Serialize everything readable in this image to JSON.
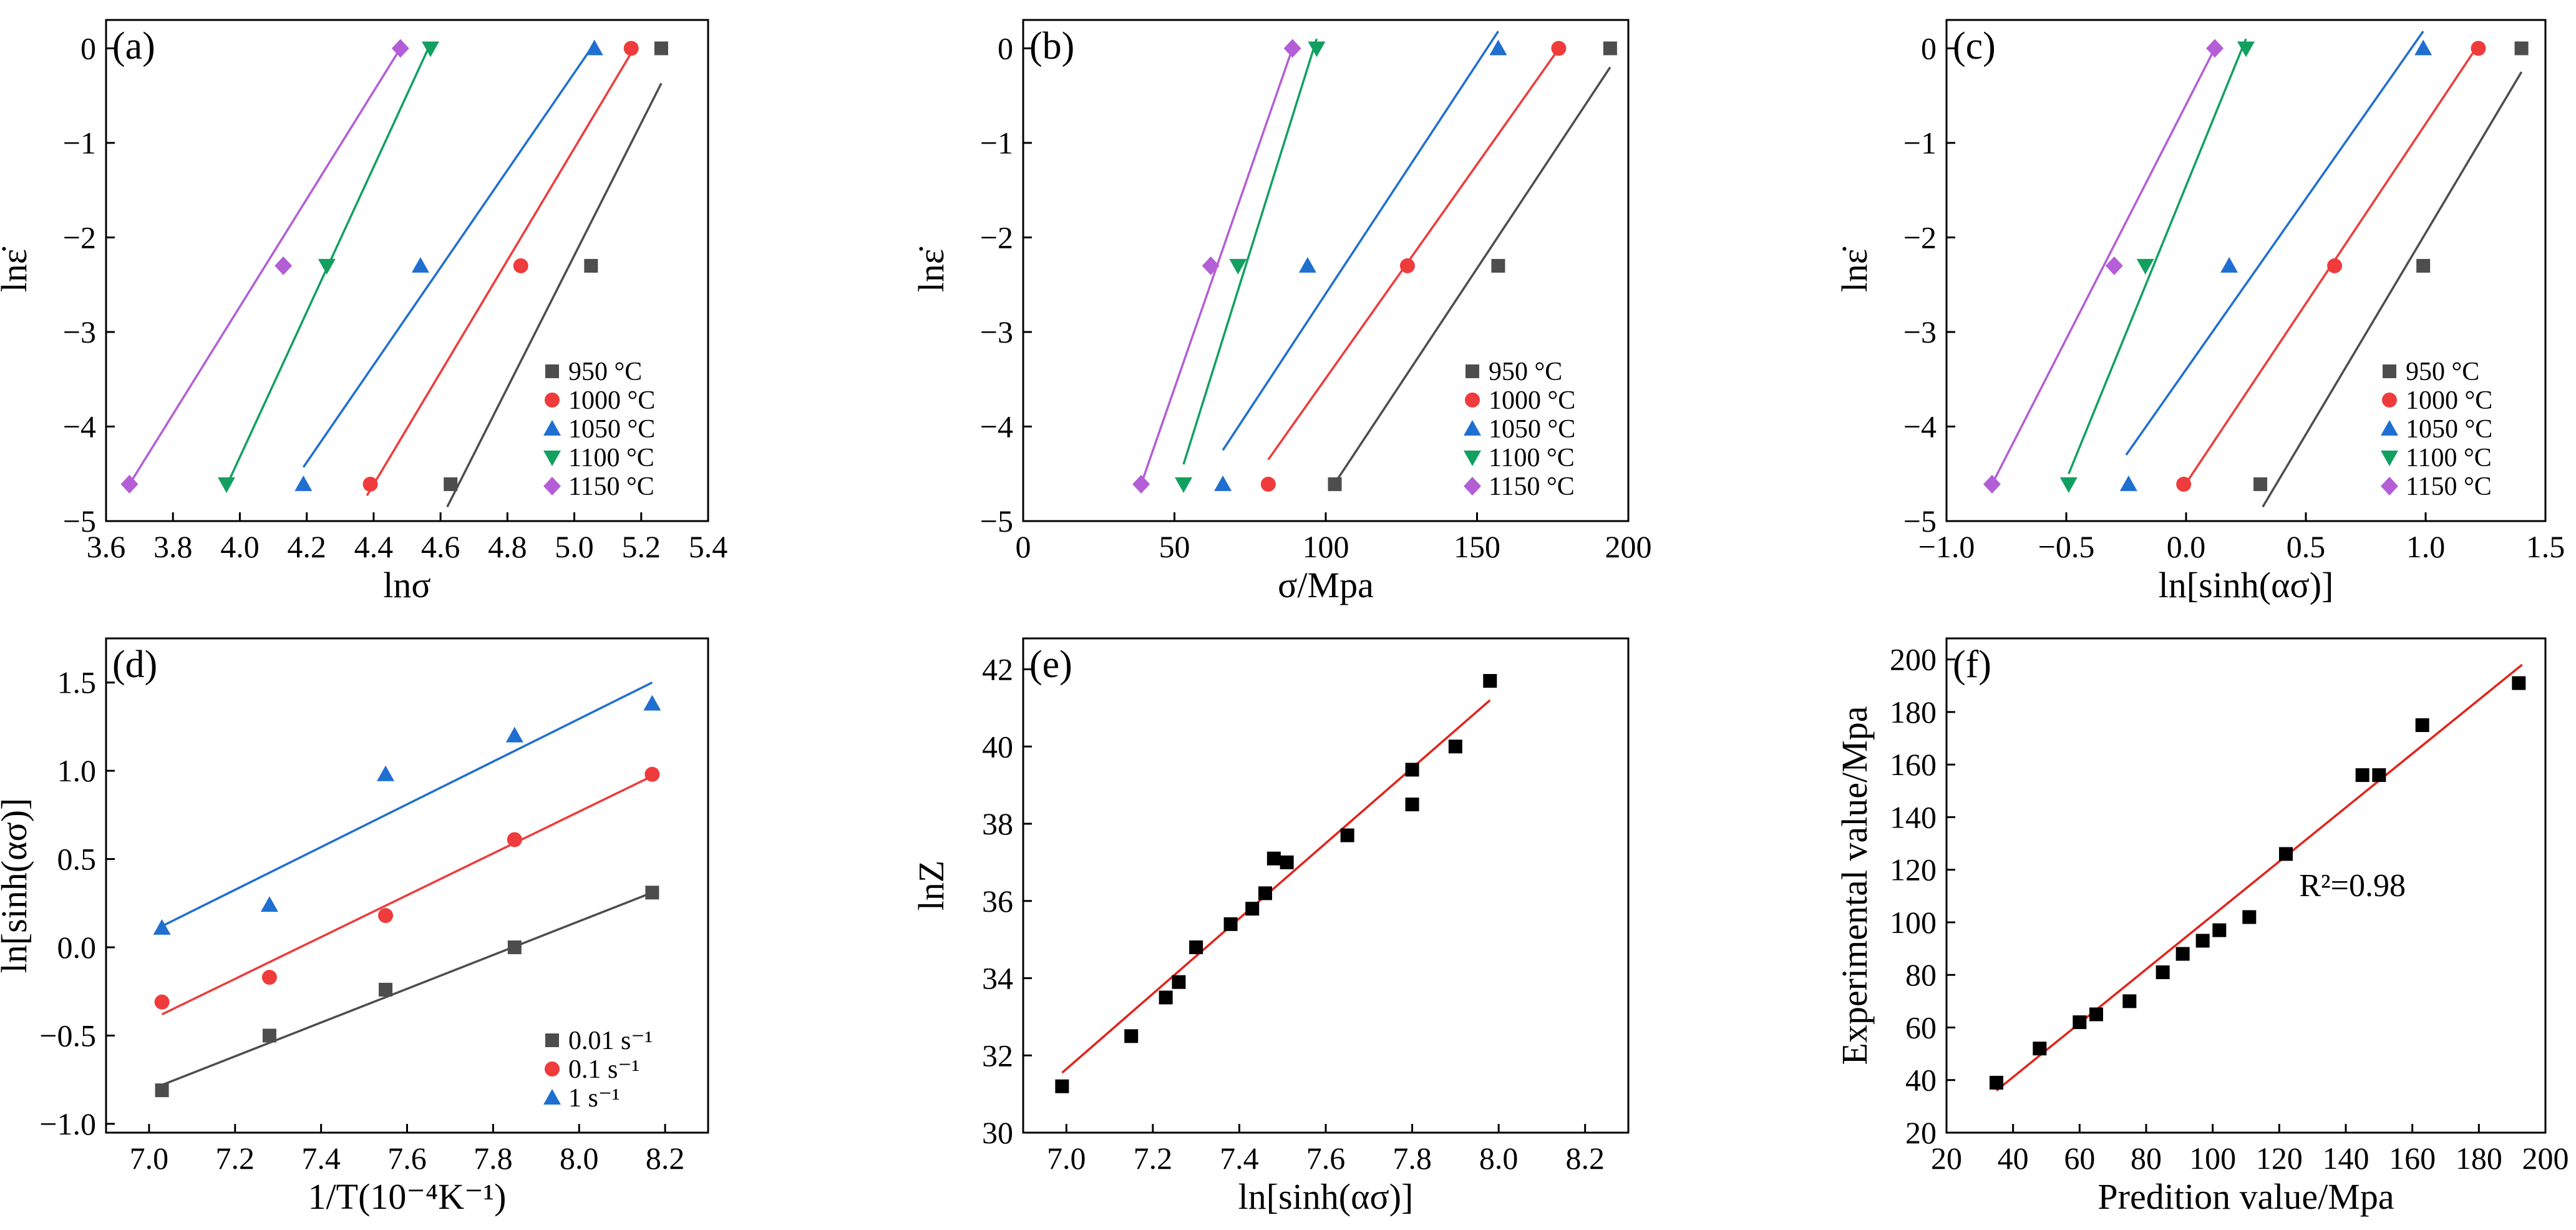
{
  "chart_data": [
    {
      "panel": "(a)",
      "type": "scatter",
      "xlabel": "lnσ",
      "ylabel": "lnε̇",
      "xlim": [
        3.6,
        5.4
      ],
      "ylim": [
        -5,
        0.3
      ],
      "xticks": [
        3.6,
        3.8,
        4.0,
        4.2,
        4.4,
        4.6,
        4.8,
        5.0,
        5.2,
        5.4
      ],
      "xtick_labels": [
        "3.6",
        "3.8",
        "4.0",
        "4.2",
        "4.4",
        "4.6",
        "4.8",
        "5.0",
        "5.2",
        "5.4"
      ],
      "yticks": [
        0,
        -1,
        -2,
        -3,
        -4,
        -5
      ],
      "ytick_labels": [
        "0",
        "−1",
        "−2",
        "−3",
        "−4",
        "−5"
      ],
      "legend_position": "bottom-right",
      "series": [
        {
          "name": "950 °C",
          "color": "#4d4d4d",
          "marker": "square",
          "x": [
            4.63,
            5.05,
            5.26
          ],
          "y": [
            -4.61,
            -2.3,
            0.0
          ],
          "line": [
            [
              4.62,
              -4.85
            ],
            [
              5.26,
              -0.37
            ]
          ]
        },
        {
          "name": "1000 °C",
          "color": "#ef3b3b",
          "marker": "circle",
          "x": [
            4.39,
            4.84,
            5.17
          ],
          "y": [
            -4.61,
            -2.3,
            0.0
          ],
          "line": [
            [
              4.38,
              -4.73
            ],
            [
              5.17,
              -0.05
            ]
          ]
        },
        {
          "name": "1050 °C",
          "color": "#1f6fd1",
          "marker": "triangle-up",
          "x": [
            4.19,
            4.54,
            5.06
          ],
          "y": [
            -4.61,
            -2.3,
            0.0
          ],
          "line": [
            [
              4.19,
              -4.43
            ],
            [
              5.06,
              0.05
            ]
          ]
        },
        {
          "name": "1100 °C",
          "color": "#12a060",
          "marker": "triangle-down",
          "x": [
            3.96,
            4.26,
            4.57
          ],
          "y": [
            -4.61,
            -2.3,
            0.0
          ],
          "line": [
            [
              3.96,
              -4.63
            ],
            [
              4.57,
              0.05
            ]
          ]
        },
        {
          "name": "1150 °C",
          "color": "#b35ed6",
          "marker": "diamond",
          "x": [
            3.67,
            4.13,
            4.48
          ],
          "y": [
            -4.61,
            -2.3,
            0.0
          ],
          "line": [
            [
              3.67,
              -4.61
            ],
            [
              4.48,
              0.0
            ]
          ]
        }
      ]
    },
    {
      "panel": "(b)",
      "type": "scatter",
      "xlabel": "σ/Mpa",
      "ylabel": "lnε̇",
      "xlim": [
        0,
        200
      ],
      "ylim": [
        -5,
        0.3
      ],
      "xticks": [
        0,
        50,
        100,
        150,
        200
      ],
      "xtick_labels": [
        "0",
        "50",
        "100",
        "150",
        "200"
      ],
      "yticks": [
        0,
        -1,
        -2,
        -3,
        -4,
        -5
      ],
      "ytick_labels": [
        "0",
        "−1",
        "−2",
        "−3",
        "−4",
        "−5"
      ],
      "legend_position": "bottom-right",
      "series": [
        {
          "name": "950 °C",
          "color": "#4d4d4d",
          "marker": "square",
          "x": [
            103,
            157,
            194
          ],
          "y": [
            -4.61,
            -2.3,
            0.0
          ],
          "line": [
            [
              103,
              -4.6
            ],
            [
              194,
              -0.2
            ]
          ]
        },
        {
          "name": "1000 °C",
          "color": "#ef3b3b",
          "marker": "circle",
          "x": [
            81,
            127,
            177
          ],
          "y": [
            -4.61,
            -2.3,
            0.0
          ],
          "line": [
            [
              81,
              -4.35
            ],
            [
              176,
              -0.05
            ]
          ]
        },
        {
          "name": "1050 °C",
          "color": "#1f6fd1",
          "marker": "triangle-up",
          "x": [
            66,
            94,
            157
          ],
          "y": [
            -4.61,
            -2.3,
            0.0
          ],
          "line": [
            [
              66,
              -4.25
            ],
            [
              157,
              0.18
            ]
          ]
        },
        {
          "name": "1100 °C",
          "color": "#12a060",
          "marker": "triangle-down",
          "x": [
            53,
            71,
            97
          ],
          "y": [
            -4.61,
            -2.3,
            0.0
          ],
          "line": [
            [
              53,
              -4.4
            ],
            [
              97,
              0.1
            ]
          ]
        },
        {
          "name": "1150 °C",
          "color": "#b35ed6",
          "marker": "diamond",
          "x": [
            39,
            62,
            89
          ],
          "y": [
            -4.61,
            -2.3,
            0.0
          ],
          "line": [
            [
              39,
              -4.61
            ],
            [
              89,
              0.0
            ]
          ]
        }
      ]
    },
    {
      "panel": "(c)",
      "type": "scatter",
      "xlabel": "ln[sinh(ασ)]",
      "ylabel": "lnε̇",
      "xlim": [
        -1.0,
        1.5
      ],
      "ylim": [
        -5,
        0.3
      ],
      "xticks": [
        -1.0,
        -0.5,
        0.0,
        0.5,
        1.0,
        1.5
      ],
      "xtick_labels": [
        "−1.0",
        "−0.5",
        "0.0",
        "0.5",
        "1.0",
        "1.5"
      ],
      "yticks": [
        0,
        -1,
        -2,
        -3,
        -4,
        -5
      ],
      "ytick_labels": [
        "0",
        "−1",
        "−2",
        "−3",
        "−4",
        "−5"
      ],
      "legend_position": "bottom-right",
      "series": [
        {
          "name": "950 °C",
          "color": "#4d4d4d",
          "marker": "square",
          "x": [
            0.31,
            0.99,
            1.4
          ],
          "y": [
            -4.61,
            -2.3,
            0.0
          ],
          "line": [
            [
              0.32,
              -4.85
            ],
            [
              1.4,
              -0.25
            ]
          ]
        },
        {
          "name": "1000 °C",
          "color": "#ef3b3b",
          "marker": "circle",
          "x": [
            -0.01,
            0.62,
            1.22
          ],
          "y": [
            -4.61,
            -2.3,
            0.0
          ],
          "line": [
            [
              0.0,
              -4.6
            ],
            [
              1.21,
              0.0
            ]
          ]
        },
        {
          "name": "1050 °C",
          "color": "#1f6fd1",
          "marker": "triangle-up",
          "x": [
            -0.24,
            0.18,
            0.99
          ],
          "y": [
            -4.61,
            -2.3,
            0.0
          ],
          "line": [
            [
              -0.25,
              -4.3
            ],
            [
              0.99,
              0.18
            ]
          ]
        },
        {
          "name": "1100 °C",
          "color": "#12a060",
          "marker": "triangle-down",
          "x": [
            -0.49,
            -0.17,
            0.25
          ],
          "y": [
            -4.61,
            -2.3,
            0.0
          ],
          "line": [
            [
              -0.49,
              -4.5
            ],
            [
              0.25,
              0.1
            ]
          ]
        },
        {
          "name": "1150 °C",
          "color": "#b35ed6",
          "marker": "diamond",
          "x": [
            -0.81,
            -0.3,
            0.12
          ],
          "y": [
            -4.61,
            -2.3,
            0.0
          ],
          "line": [
            [
              -0.81,
              -4.61
            ],
            [
              0.12,
              0.0
            ]
          ]
        }
      ]
    },
    {
      "panel": "(d)",
      "type": "scatter",
      "xlabel": "1/T(10⁻⁴K⁻¹)",
      "ylabel": "ln[sinh(ασ)]",
      "xlim": [
        6.9,
        8.3
      ],
      "ylim": [
        -1.05,
        1.75
      ],
      "xticks": [
        7.0,
        7.2,
        7.4,
        7.6,
        7.8,
        8.0,
        8.2
      ],
      "xtick_labels": [
        "7.0",
        "7.2",
        "7.4",
        "7.6",
        "7.8",
        "8.0",
        "8.2"
      ],
      "yticks": [
        -1.0,
        -0.5,
        0.0,
        0.5,
        1.0,
        1.5
      ],
      "ytick_labels": [
        "−1.0",
        "−0.5",
        "0.0",
        "0.5",
        "1.0",
        "1.5"
      ],
      "legend_position": "bottom-right",
      "series": [
        {
          "name": "0.01 s⁻¹",
          "color": "#4d4d4d",
          "marker": "square",
          "x": [
            7.03,
            7.28,
            7.55,
            7.85,
            8.17
          ],
          "y": [
            -0.81,
            -0.5,
            -0.24,
            0.0,
            0.31
          ],
          "line": [
            [
              7.03,
              -0.78
            ],
            [
              8.17,
              0.31
            ]
          ]
        },
        {
          "name": "0.1 s⁻¹",
          "color": "#ef3b3b",
          "marker": "circle",
          "x": [
            7.03,
            7.28,
            7.55,
            7.85,
            8.17
          ],
          "y": [
            -0.31,
            -0.17,
            0.18,
            0.61,
            0.98
          ],
          "line": [
            [
              7.03,
              -0.38
            ],
            [
              8.17,
              0.97
            ]
          ]
        },
        {
          "name": "1 s⁻¹",
          "color": "#1f6fd1",
          "marker": "triangle-up",
          "x": [
            7.03,
            7.28,
            7.55,
            7.85,
            8.17
          ],
          "y": [
            0.11,
            0.24,
            0.98,
            1.2,
            1.38
          ],
          "line": [
            [
              7.03,
              0.12
            ],
            [
              8.17,
              1.5
            ]
          ]
        }
      ]
    },
    {
      "panel": "(e)",
      "type": "scatter",
      "xlabel": "ln[sinh(ασ)]",
      "ylabel": "lnZ",
      "xlim": [
        6.9,
        8.3
      ],
      "ylim": [
        30,
        42.8
      ],
      "xticks": [
        7.0,
        7.2,
        7.4,
        7.6,
        7.8,
        8.0,
        8.2
      ],
      "xtick_labels": [
        "7.0",
        "7.2",
        "7.4",
        "7.6",
        "7.8",
        "8.0",
        "8.2"
      ],
      "yticks": [
        30,
        32,
        34,
        36,
        38,
        40,
        42
      ],
      "ytick_labels": [
        "30",
        "32",
        "34",
        "36",
        "38",
        "40",
        "42"
      ],
      "series": [
        {
          "name": "data",
          "color": "#000000",
          "marker": "square",
          "x": [
            6.99,
            7.15,
            7.23,
            7.26,
            7.3,
            7.38,
            7.43,
            7.46,
            7.48,
            7.51,
            7.65,
            7.8,
            7.8,
            7.9,
            7.98
          ],
          "y": [
            31.2,
            32.5,
            33.5,
            33.9,
            34.8,
            35.4,
            35.8,
            36.2,
            37.1,
            37.0,
            37.7,
            38.5,
            39.4,
            40.0,
            41.7
          ],
          "line": [
            [
              6.99,
              31.55
            ],
            [
              7.98,
              41.2
            ]
          ]
        }
      ]
    },
    {
      "panel": "(f)",
      "type": "scatter",
      "xlabel": "Predition value/Mpa",
      "ylabel": "Experimental value/Mpa",
      "xlim": [
        20,
        200
      ],
      "ylim": [
        20,
        208
      ],
      "xticks": [
        20,
        40,
        60,
        80,
        100,
        120,
        140,
        160,
        180,
        200
      ],
      "xtick_labels": [
        "20",
        "40",
        "60",
        "80",
        "100",
        "120",
        "140",
        "160",
        "180",
        "200"
      ],
      "yticks": [
        20,
        40,
        60,
        80,
        100,
        120,
        140,
        160,
        180,
        200
      ],
      "ytick_labels": [
        "20",
        "40",
        "60",
        "80",
        "100",
        "120",
        "140",
        "160",
        "180",
        "200"
      ],
      "annotation": {
        "text": "R²=0.98",
        "x": 142,
        "y": 110
      },
      "series": [
        {
          "name": "data",
          "color": "#000000",
          "marker": "square",
          "x": [
            35,
            48,
            60,
            65,
            75,
            85,
            91,
            97,
            102,
            111,
            122,
            145,
            150,
            163,
            192
          ],
          "y": [
            39,
            52,
            62,
            65,
            70,
            81,
            88,
            93,
            97,
            102,
            126,
            156,
            156,
            175,
            191
          ],
          "line": [
            [
              35,
              36
            ],
            [
              193,
              198
            ]
          ]
        }
      ]
    }
  ]
}
